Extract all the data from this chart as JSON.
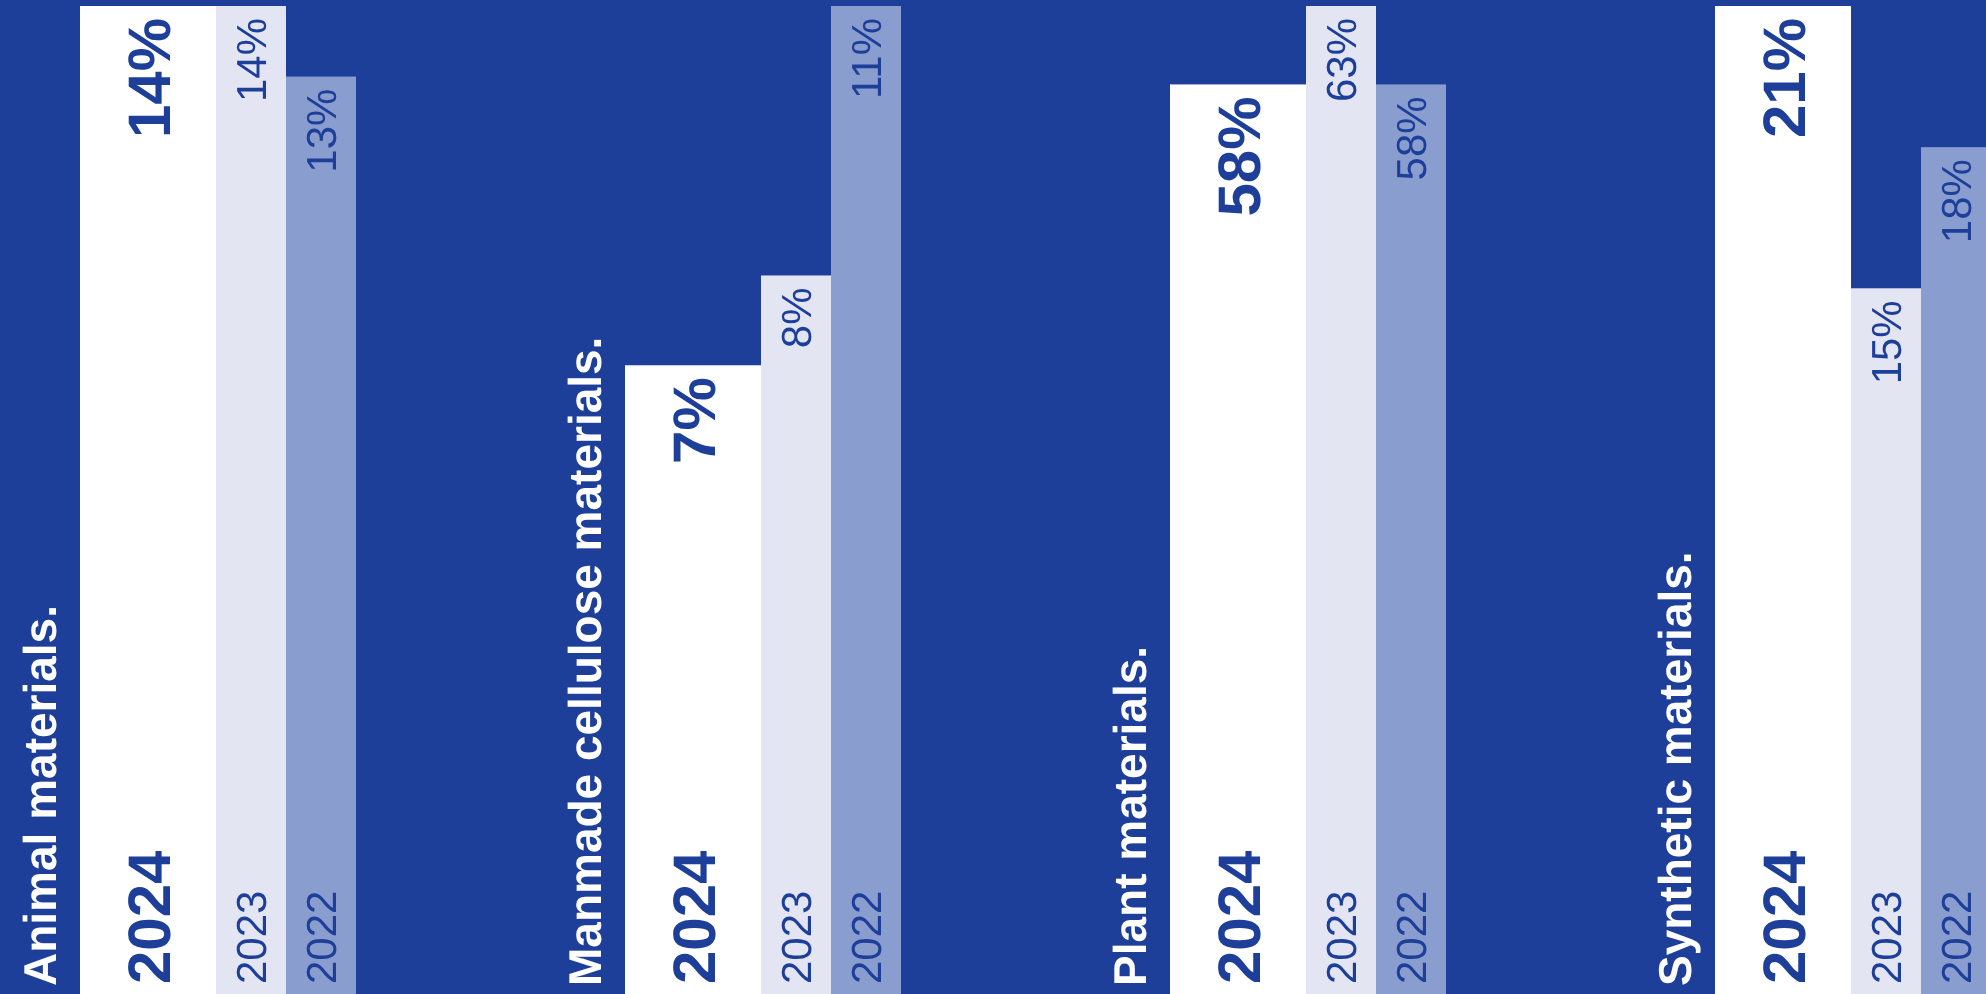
{
  "chart_data": [
    {
      "type": "bar",
      "title": "Animal materials.",
      "categories": [
        "2024",
        "2023",
        "2022"
      ],
      "values": [
        14,
        14,
        13
      ],
      "value_labels": [
        "14%",
        "14%",
        "13%"
      ],
      "colors": [
        "#ffffff",
        "#e3e6f2",
        "#8a9dcf"
      ],
      "tick_labels": "x"
    },
    {
      "type": "bar",
      "title": "Manmade cellulose materials.",
      "categories": [
        "2024",
        "2023",
        "2022"
      ],
      "values": [
        7,
        8,
        11
      ],
      "value_labels": [
        "7%",
        "8%",
        "11%"
      ],
      "colors": [
        "#ffffff",
        "#e3e6f2",
        "#8a9dcf"
      ],
      "tick_labels": "x"
    },
    {
      "type": "bar",
      "title": "Plant materials.",
      "categories": [
        "2024",
        "2023",
        "2022"
      ],
      "values": [
        58,
        63,
        58
      ],
      "value_labels": [
        "58%",
        "63%",
        "58%"
      ],
      "colors": [
        "#ffffff",
        "#e3e6f2",
        "#8a9dcf"
      ],
      "tick_labels": "x"
    },
    {
      "type": "bar",
      "title": "Synthetic materials.",
      "categories": [
        "2024",
        "2023",
        "2022"
      ],
      "values": [
        21,
        15,
        18
      ],
      "value_labels": [
        "21%",
        "15%",
        "18%"
      ],
      "colors": [
        "#ffffff",
        "#e3e6f2",
        "#8a9dcf"
      ],
      "tick_labels": "x"
    }
  ]
}
